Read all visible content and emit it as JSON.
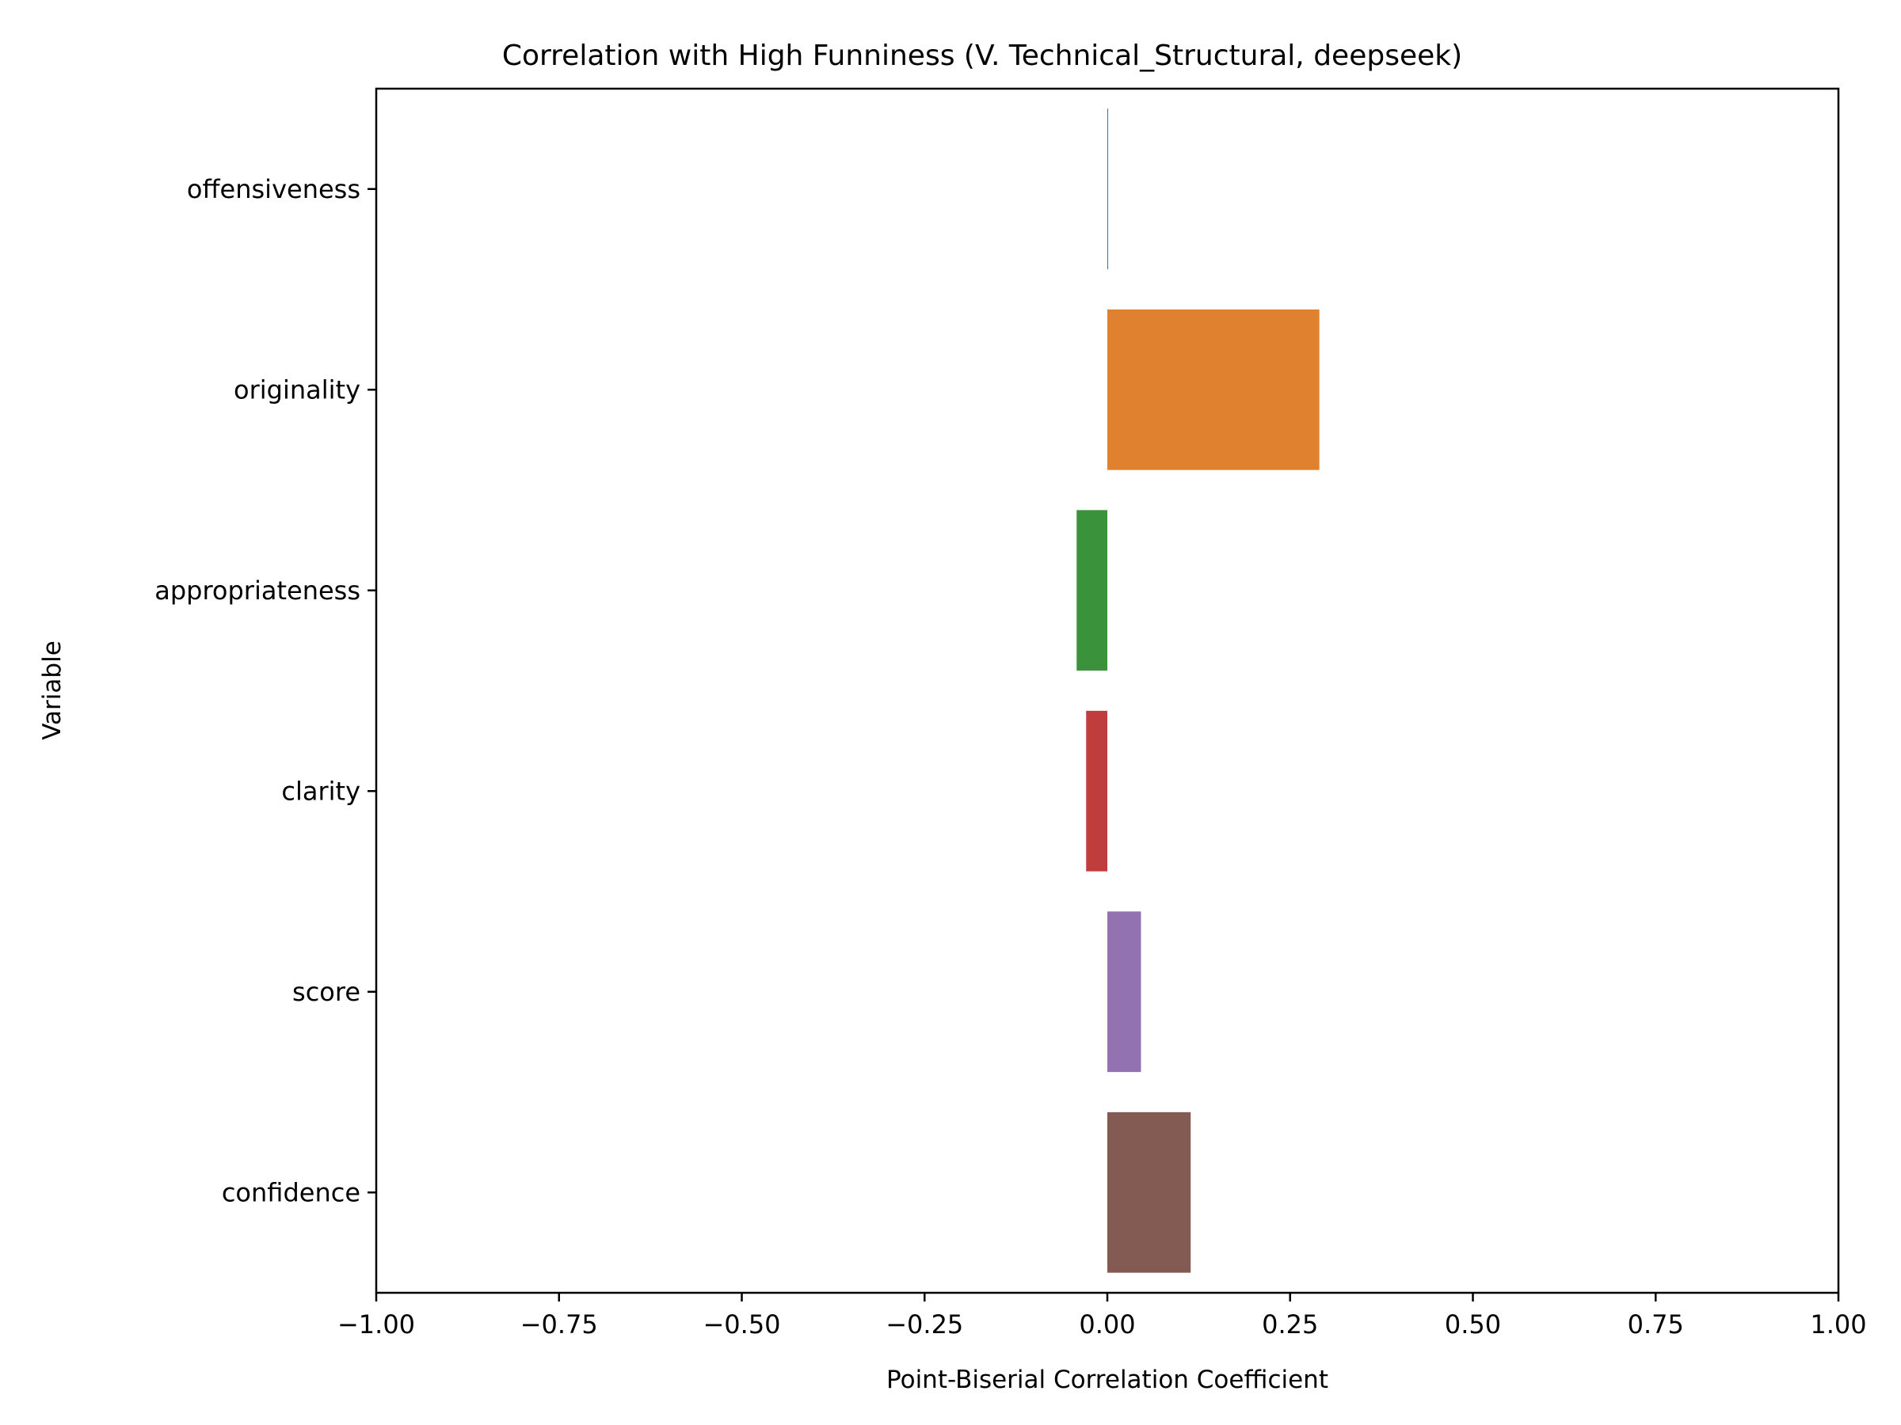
{
  "chart_data": {
    "type": "bar",
    "orientation": "horizontal",
    "title": "Correlation with High Funniness (V. Technical_Structural, deepseek)",
    "xlabel": "Point-Biserial Correlation Coefficient",
    "ylabel": "Variable",
    "xlim": [
      -1.0,
      1.0
    ],
    "xticks": [
      -1.0,
      -0.75,
      -0.5,
      -0.25,
      0.0,
      0.25,
      0.5,
      0.75,
      1.0
    ],
    "xtick_labels": [
      "−1.00",
      "−0.75",
      "−0.50",
      "−0.25",
      "0.00",
      "0.25",
      "0.50",
      "0.75",
      "1.00"
    ],
    "grid": false,
    "categories": [
      "offensiveness",
      "originality",
      "appropriateness",
      "clarity",
      "score",
      "confidence"
    ],
    "values": [
      0.001,
      0.29,
      -0.042,
      -0.029,
      0.046,
      0.114
    ],
    "colors": [
      "#1f77b4",
      "#e08130",
      "#3a923a",
      "#c03d3e",
      "#9372b2",
      "#845b53"
    ]
  }
}
